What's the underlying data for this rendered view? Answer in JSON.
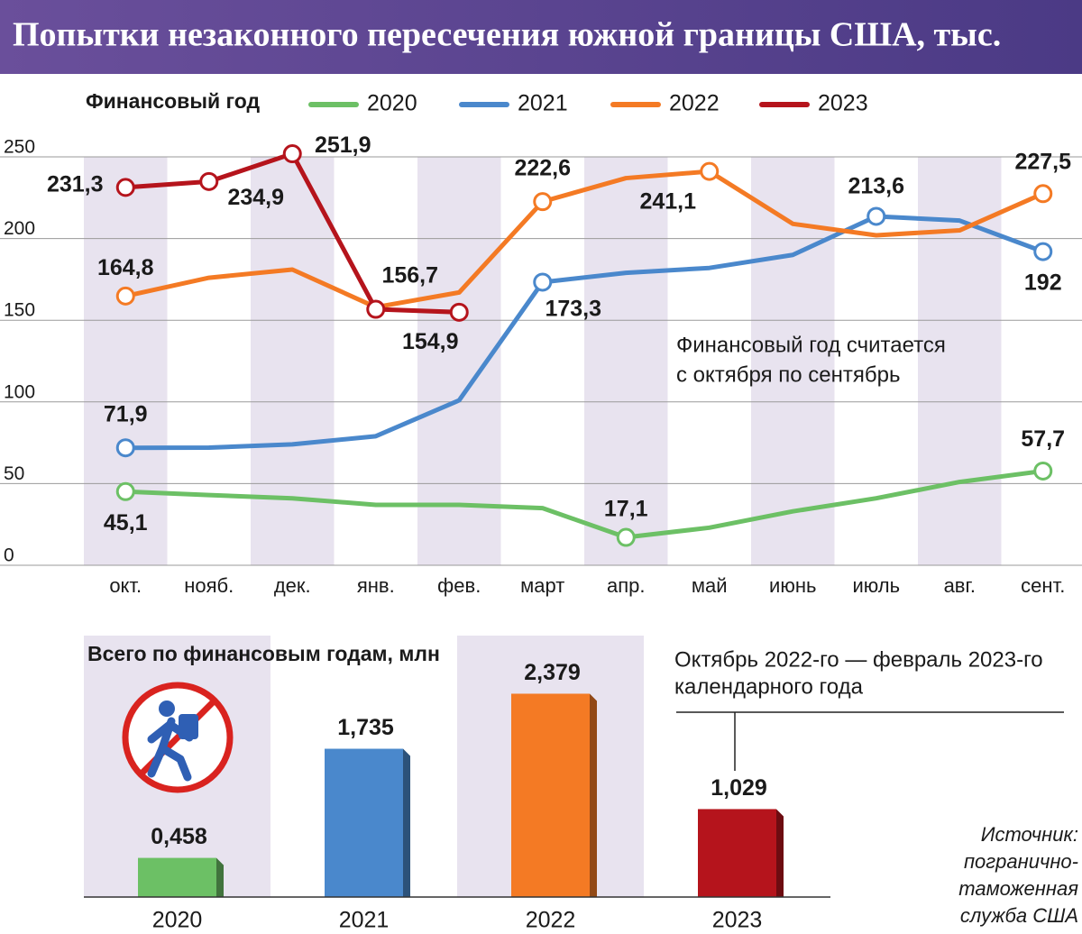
{
  "title": "Попытки незаконного пересечения южной границы США, тыс.",
  "chart_data": [
    {
      "type": "line",
      "legend_title": "Финансовый год",
      "annotation_lines": [
        "Финансовый год считается",
        "с октября по сентябрь"
      ],
      "categories": [
        "окт.",
        "нояб.",
        "дек.",
        "янв.",
        "фев.",
        "март",
        "апр.",
        "май",
        "июнь",
        "июль",
        "авг.",
        "сент."
      ],
      "series": [
        {
          "name": "2020",
          "color": "#6cc065",
          "values": [
            45.1,
            43,
            41,
            37,
            37,
            35,
            17.1,
            23,
            33,
            41,
            51,
            57.7
          ],
          "value_labels": [
            "45,1",
            null,
            null,
            null,
            null,
            null,
            "17,1",
            null,
            null,
            null,
            null,
            "57,7"
          ]
        },
        {
          "name": "2021",
          "color": "#4a88cc",
          "values": [
            71.9,
            72,
            74,
            79,
            101,
            173.3,
            179,
            182,
            190,
            213.6,
            211,
            192
          ],
          "value_labels": [
            "71,9",
            null,
            null,
            null,
            null,
            "173,3",
            null,
            null,
            null,
            "213,6",
            null,
            "192"
          ]
        },
        {
          "name": "2022",
          "color": "#f47a24",
          "values": [
            164.8,
            176,
            181,
            158,
            167,
            222.6,
            237,
            241.1,
            209,
            202,
            205,
            227.5
          ],
          "value_labels": [
            "164,8",
            null,
            null,
            null,
            null,
            "222,6",
            null,
            "241,1",
            null,
            null,
            null,
            "227,5"
          ]
        },
        {
          "name": "2023",
          "color": "#b5141c",
          "values": [
            231.3,
            234.9,
            251.9,
            156.7,
            154.9,
            null,
            null,
            null,
            null,
            null,
            null,
            null
          ],
          "value_labels": [
            "231,3",
            "234,9",
            "251,9",
            "156,7",
            "154,9",
            null,
            null,
            null,
            null,
            null,
            null,
            null
          ]
        }
      ],
      "ylim": [
        0,
        250
      ],
      "yticks": [
        0,
        50,
        100,
        150,
        200,
        250
      ],
      "grid": true
    },
    {
      "type": "bar",
      "title": "Всего по финансовым годам, млн",
      "annotation_lines": [
        "Октябрь 2022-го — февраль 2023-го",
        "календарного года"
      ],
      "categories": [
        "2020",
        "2021",
        "2022",
        "2023"
      ],
      "values": [
        0.458,
        1.735,
        2.379,
        1.029
      ],
      "value_labels": [
        "0,458",
        "1,735",
        "2,379",
        "1,029"
      ],
      "colors": [
        "#6cc065",
        "#4a88cc",
        "#f47a24",
        "#b5141c"
      ],
      "ylim": [
        0,
        2.5
      ]
    }
  ],
  "source_lines": [
    "Источник:",
    "погранично-",
    "таможенная",
    "служба США"
  ]
}
